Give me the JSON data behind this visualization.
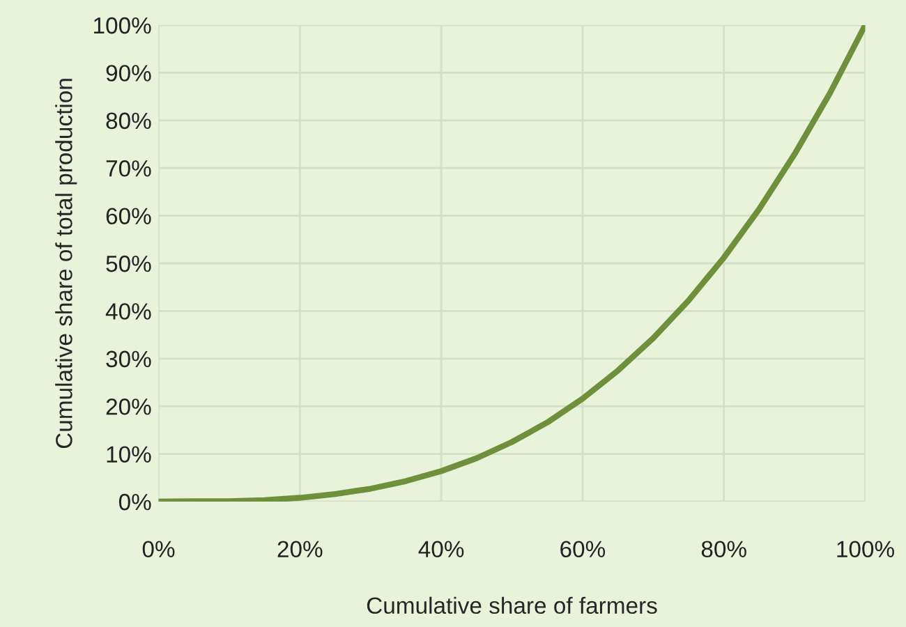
{
  "chart_data": {
    "type": "line",
    "xlabel": "Cumulative share of farmers",
    "ylabel": "Cumulative share of total production",
    "x": [
      0,
      5,
      10,
      15,
      20,
      25,
      30,
      35,
      40,
      45,
      50,
      55,
      60,
      65,
      70,
      75,
      80,
      85,
      90,
      95,
      100
    ],
    "series": [
      {
        "color": "#6e8f3c",
        "values": [
          0,
          0.1,
          0.1,
          0.3,
          0.8,
          1.6,
          2.7,
          4.3,
          6.4,
          9.1,
          12.5,
          16.6,
          21.6,
          27.5,
          34.3,
          42.2,
          51.2,
          61.4,
          72.9,
          85.7,
          100
        ]
      }
    ],
    "xlim": [
      0,
      100
    ],
    "ylim": [
      0,
      100
    ],
    "xticks": [
      {
        "value": 0,
        "label": "0%"
      },
      {
        "value": 20,
        "label": "20%"
      },
      {
        "value": 40,
        "label": "40%"
      },
      {
        "value": 60,
        "label": "60%"
      },
      {
        "value": 80,
        "label": "80%"
      },
      {
        "value": 100,
        "label": "100%"
      }
    ],
    "yticks": [
      {
        "value": 0,
        "label": "0%"
      },
      {
        "value": 10,
        "label": "10%"
      },
      {
        "value": 20,
        "label": "20%"
      },
      {
        "value": 30,
        "label": "30%"
      },
      {
        "value": 40,
        "label": "40%"
      },
      {
        "value": 50,
        "label": "50%"
      },
      {
        "value": 60,
        "label": "60%"
      },
      {
        "value": 70,
        "label": "70%"
      },
      {
        "value": 80,
        "label": "80%"
      },
      {
        "value": 90,
        "label": "90%"
      },
      {
        "value": 100,
        "label": "100%"
      }
    ],
    "grid": true,
    "legend": false,
    "marker": "none",
    "line_style": "solid"
  }
}
